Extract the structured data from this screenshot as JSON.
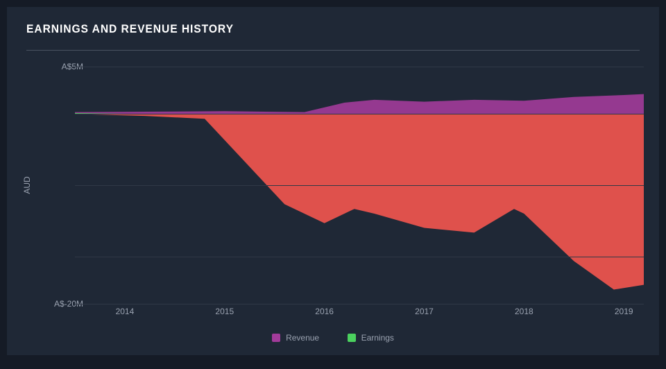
{
  "chart": {
    "type": "area",
    "title": "EARNINGS AND REVENUE HISTORY",
    "background_color": "#1f2836",
    "page_background": "#151b26",
    "grid_color": "#303846",
    "text_color": "#9aa2b0",
    "title_color": "#ffffff",
    "title_fontsize": 17,
    "label_fontsize": 12,
    "y_axis": {
      "label": "AUD",
      "ticks": [
        {
          "value": 5,
          "label": "A$5M"
        },
        {
          "value": -20,
          "label": "A$-20M"
        }
      ],
      "ylim": [
        -20,
        5
      ],
      "gridlines": [
        5,
        0,
        -7.5,
        -15,
        -20
      ]
    },
    "x_axis": {
      "ticks": [
        "2014",
        "2015",
        "2016",
        "2017",
        "2018",
        "2019"
      ],
      "range_years": [
        2013.5,
        2019.2
      ]
    },
    "series": [
      {
        "name": "Revenue",
        "color": "#a23b9a",
        "opacity": 0.9,
        "baseline": 0,
        "data": [
          {
            "x": 2013.5,
            "y": 0.2
          },
          {
            "x": 2015.0,
            "y": 0.3
          },
          {
            "x": 2015.8,
            "y": 0.2
          },
          {
            "x": 2016.2,
            "y": 1.2
          },
          {
            "x": 2016.5,
            "y": 1.5
          },
          {
            "x": 2017.0,
            "y": 1.3
          },
          {
            "x": 2017.5,
            "y": 1.5
          },
          {
            "x": 2018.0,
            "y": 1.4
          },
          {
            "x": 2018.5,
            "y": 1.8
          },
          {
            "x": 2019.0,
            "y": 2.0
          },
          {
            "x": 2019.2,
            "y": 2.1
          }
        ]
      },
      {
        "name": "Earnings",
        "color": "#4bd15e",
        "opacity": 0.95,
        "baseline": 0,
        "data": [
          {
            "x": 2013.5,
            "y": 0.1
          },
          {
            "x": 2014.2,
            "y": -0.2
          },
          {
            "x": 2014.8,
            "y": -0.5
          },
          {
            "x": 2015.2,
            "y": -5.0
          },
          {
            "x": 2015.6,
            "y": -9.5
          },
          {
            "x": 2016.0,
            "y": -11.5
          },
          {
            "x": 2016.3,
            "y": -10.0
          },
          {
            "x": 2016.5,
            "y": -10.5
          },
          {
            "x": 2017.0,
            "y": -12.0
          },
          {
            "x": 2017.5,
            "y": -12.5
          },
          {
            "x": 2017.9,
            "y": -10.0
          },
          {
            "x": 2018.0,
            "y": -10.5
          },
          {
            "x": 2018.5,
            "y": -15.5
          },
          {
            "x": 2018.9,
            "y": -18.5
          },
          {
            "x": 2019.2,
            "y": -18.0
          }
        ]
      }
    ],
    "negative_fill_color": "#f0554e",
    "negative_fill_opacity": 0.92,
    "legend": {
      "items": [
        {
          "label": "Revenue",
          "color": "#a23b9a"
        },
        {
          "label": "Earnings",
          "color": "#4bd15e"
        }
      ]
    }
  }
}
